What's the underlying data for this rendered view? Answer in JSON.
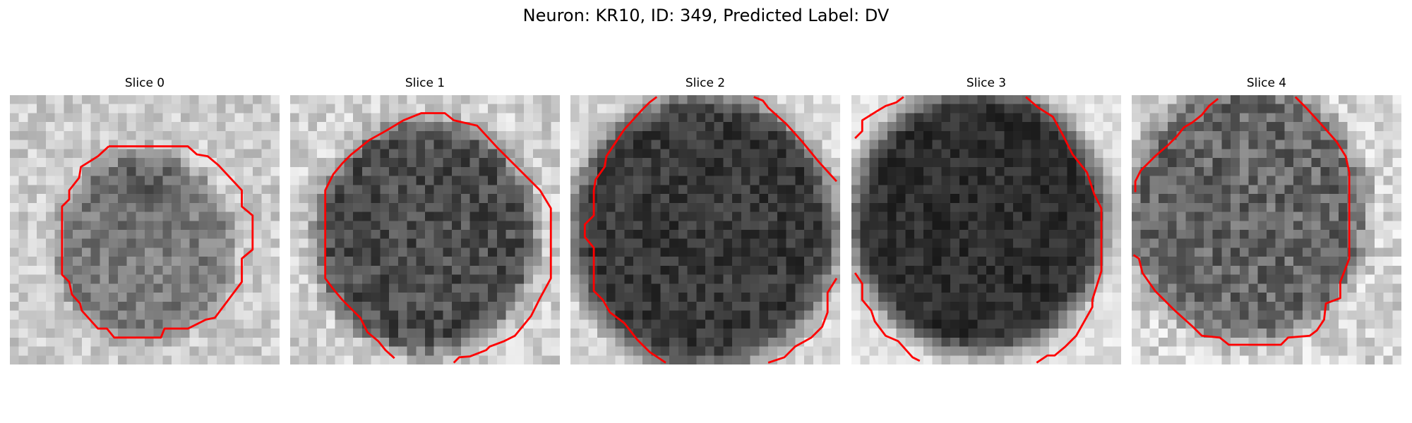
{
  "figure": {
    "title": "Neuron: KR10, ID: 349, Predicted Label: DV"
  },
  "panels": [
    {
      "title": "Slice 0",
      "colormap": "grayscale",
      "contour_color": "#ff0000"
    },
    {
      "title": "Slice 1",
      "colormap": "grayscale",
      "contour_color": "#ff0000"
    },
    {
      "title": "Slice 2",
      "colormap": "grayscale",
      "contour_color": "#ff0000"
    },
    {
      "title": "Slice 3",
      "colormap": "grayscale",
      "contour_color": "#ff0000"
    },
    {
      "title": "Slice 4",
      "colormap": "grayscale",
      "contour_color": "#ff0000"
    }
  ]
}
